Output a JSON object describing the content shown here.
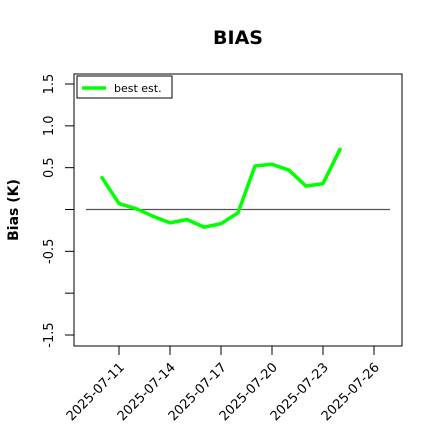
{
  "chart_data": {
    "type": "line",
    "title": "BIAS",
    "xlabel": "",
    "ylabel": "Bias (K)",
    "x": [
      "2025-07-10",
      "2025-07-11",
      "2025-07-12",
      "2025-07-13",
      "2025-07-14",
      "2025-07-15",
      "2025-07-16",
      "2025-07-17",
      "2025-07-18",
      "2025-07-19",
      "2025-07-20",
      "2025-07-21",
      "2025-07-22",
      "2025-07-23",
      "2025-07-24"
    ],
    "series": [
      {
        "name": "best est.",
        "color": "#00ff00",
        "values": [
          0.38,
          0.07,
          0.01,
          -0.08,
          -0.16,
          -0.12,
          -0.21,
          -0.17,
          -0.04,
          0.52,
          0.54,
          0.47,
          0.28,
          0.31,
          0.72
        ]
      }
    ],
    "xlim": [
      "2025-07-09",
      "2025-07-28"
    ],
    "ylim": [
      -1.6,
      1.6
    ],
    "xticks": [
      "2025-07-11",
      "2025-07-14",
      "2025-07-17",
      "2025-07-20",
      "2025-07-23",
      "2025-07-26"
    ],
    "yticks": [
      -1.5,
      -1.0,
      -0.5,
      0.0,
      0.5,
      1.0,
      1.5
    ],
    "ytick_labels": [
      "-1.5",
      "",
      "-0.5",
      "",
      "0.5",
      "1.0",
      "1.5"
    ],
    "reference_line": {
      "y": 0.0,
      "color": "#555555"
    },
    "grid": false,
    "legend_position": "top-left"
  }
}
